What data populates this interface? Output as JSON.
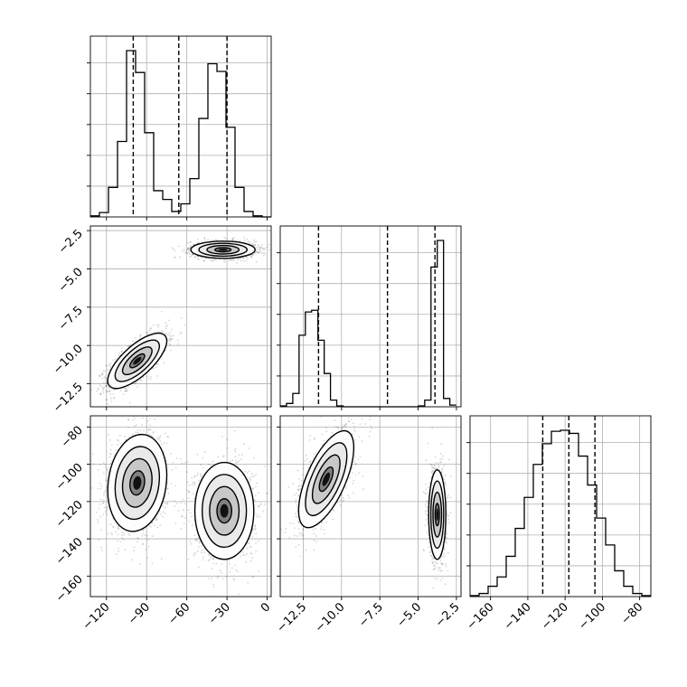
{
  "chart_data": {
    "type": "corner",
    "parameters": [
      "x",
      "y",
      "z"
    ],
    "ranges": {
      "x": [
        -132,
        3
      ],
      "y": [
        -14.0,
        -2.2
      ],
      "z": [
        -171,
        -74
      ]
    },
    "ticks": {
      "x": [
        -120,
        -90,
        -60,
        -30,
        0
      ],
      "y": [
        -12.5,
        -10.0,
        -7.5,
        -5.0,
        -2.5
      ],
      "z": [
        -160,
        -140,
        -120,
        -100,
        -80
      ]
    },
    "tick_labels": {
      "x": [
        "−120",
        "−90",
        "−60",
        "−30",
        "0"
      ],
      "y": [
        "−12.5",
        "−10.0",
        "−7.5",
        "−5.0",
        "−2.5"
      ],
      "z": [
        "−160",
        "−140",
        "−120",
        "−100",
        "−80"
      ]
    },
    "histograms": {
      "x": {
        "bin_edges": [
          -132,
          -125.25,
          -118.5,
          -111.75,
          -105,
          -98.25,
          -91.5,
          -84.75,
          -78,
          -71.25,
          -64.5,
          -57.75,
          -51,
          -44.25,
          -37.5,
          -30.75,
          -24,
          -17.25,
          -10.5,
          -3.75,
          3
        ],
        "counts": [
          5,
          20,
          135,
          345,
          760,
          660,
          385,
          120,
          80,
          25,
          60,
          175,
          450,
          700,
          665,
          410,
          135,
          25,
          5,
          0
        ],
        "quantiles": [
          -100,
          -66,
          -30
        ]
      },
      "y": {
        "bin_edges": [
          -14.0,
          -13.59,
          -13.18,
          -12.77,
          -12.36,
          -11.95,
          -11.54,
          -11.13,
          -10.72,
          -10.31,
          -9.9,
          -9.49,
          -9.08,
          -8.67,
          -8.26,
          -7.85,
          -7.44,
          -7.03,
          -6.62,
          -6.21,
          -5.8,
          -5.39,
          -4.98,
          -4.57,
          -4.16,
          -3.75,
          -3.34,
          -2.93,
          -2.52
        ],
        "counts": [
          5,
          20,
          80,
          430,
          570,
          580,
          400,
          200,
          40,
          5,
          0,
          0,
          0,
          0,
          0,
          0,
          0,
          0,
          0,
          0,
          0,
          0,
          5,
          40,
          840,
          1000,
          50,
          10
        ],
        "quantiles": [
          -11.5,
          -7.0,
          -3.9
        ]
      },
      "z": {
        "bin_edges": [
          -171,
          -166.15,
          -161.3,
          -156.45,
          -151.6,
          -146.75,
          -141.9,
          -137.05,
          -132.2,
          -127.35,
          -122.5,
          -117.65,
          -112.8,
          -107.95,
          -103.1,
          -98.25,
          -93.4,
          -88.55,
          -83.7,
          -78.85,
          -74
        ],
        "counts": [
          5,
          15,
          50,
          95,
          195,
          330,
          480,
          640,
          740,
          800,
          805,
          790,
          680,
          540,
          380,
          250,
          125,
          50,
          15,
          5
        ],
        "quantiles": [
          -132,
          -118,
          -104
        ]
      }
    },
    "clusters": {
      "xy": [
        {
          "cx": -97,
          "cy": -11.0,
          "sx": 11,
          "sy": 0.9,
          "rho": 0.72
        },
        {
          "cx": -33,
          "cy": -3.75,
          "sx": 12,
          "sy": 0.28,
          "rho": 0.0
        }
      ],
      "xz": [
        {
          "cx": -97,
          "cy": -110,
          "sx": 11,
          "sy": 13,
          "rho": 0.15
        },
        {
          "cx": -32,
          "cy": -125,
          "sx": 11,
          "sy": 13,
          "rho": 0.0
        }
      ],
      "yz": [
        {
          "cx": -11.0,
          "cy": -108,
          "sx": 0.9,
          "sy": 13,
          "rho": 0.65
        },
        {
          "cx": -3.75,
          "cy": -127,
          "sx": 0.28,
          "sy": 12,
          "rho": 0.0
        }
      ]
    },
    "grid": true
  }
}
